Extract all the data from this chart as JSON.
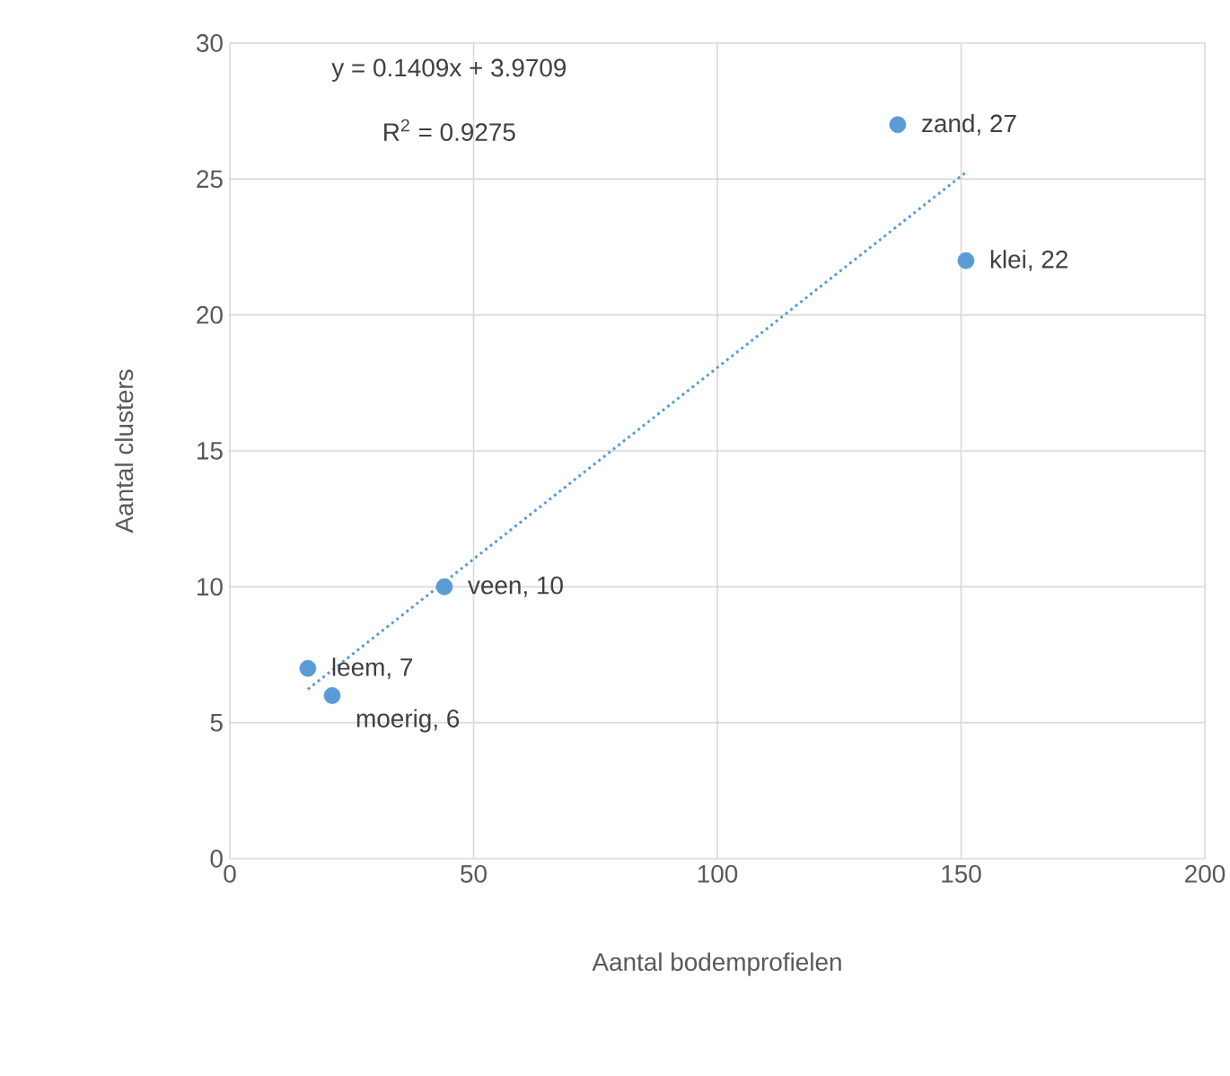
{
  "chart_data": {
    "type": "scatter",
    "xlabel": "Aantal bodemprofielen",
    "ylabel": "Aantal clusters",
    "xlim": [
      0,
      200
    ],
    "xticks": [
      0,
      50,
      100,
      150,
      200
    ],
    "ylim": [
      0,
      30
    ],
    "yticks": [
      0,
      5,
      10,
      15,
      20,
      25,
      30
    ],
    "grid": true,
    "series": [
      {
        "type": "scatter",
        "marker": "circle",
        "color": "#5b9bd5",
        "x": [
          16,
          21,
          44,
          137,
          151
        ],
        "values": [
          7,
          6,
          10,
          27,
          22
        ]
      },
      {
        "type": "line",
        "line_style": "dotted",
        "marker": "none",
        "color": "#5b9bd5",
        "x": [
          16,
          151
        ],
        "values": [
          6.23,
          25.25
        ]
      }
    ],
    "annotations": [
      "y = 0.1409x + 3.9709",
      "R$^{2}$ = 0.9275",
      {
        "text": "leem, 7",
        "x": 16,
        "y": 7
      },
      {
        "text": "moerig, 6",
        "x": 21,
        "y": 6
      },
      {
        "text": "veen, 10",
        "x": 44,
        "y": 10
      },
      {
        "text": "zand, 27",
        "x": 137,
        "y": 27
      },
      {
        "text": "klei, 22",
        "x": 151,
        "y": 22
      }
    ]
  }
}
